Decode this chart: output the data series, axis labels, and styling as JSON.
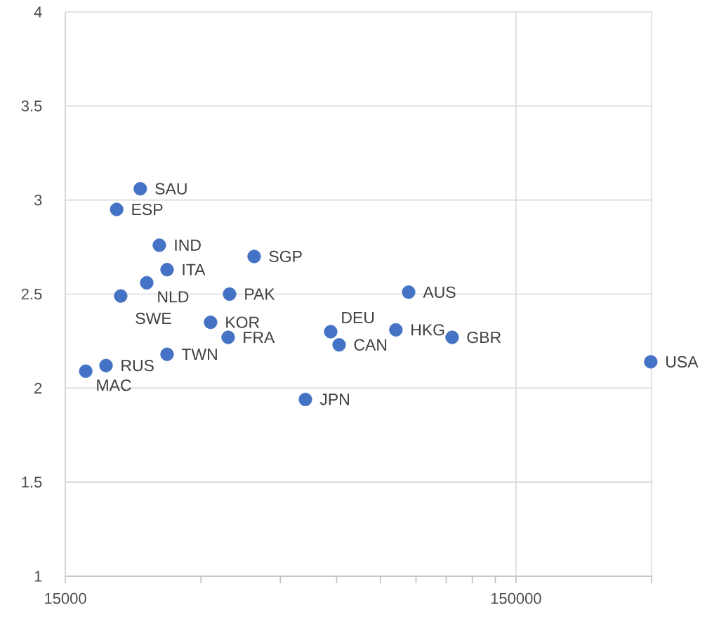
{
  "chart_data": {
    "type": "scatter",
    "color": "#4472c4",
    "log": "x",
    "grid": true,
    "x": [
      22000,
      19500,
      24250,
      25230,
      22740,
      19910,
      39370,
      34720,
      31510,
      34470,
      25230,
      18470,
      16650,
      51150,
      58210,
      60770,
      81220,
      86680,
      108250,
      298700
    ],
    "values": [
      3.06,
      2.95,
      2.76,
      2.63,
      2.56,
      2.49,
      2.7,
      2.5,
      2.35,
      2.27,
      2.18,
      2.12,
      2.09,
      1.94,
      2.3,
      2.23,
      2.31,
      2.51,
      2.27,
      2.14
    ],
    "xlim": [
      15000,
      300000
    ],
    "ylim": [
      1,
      4
    ],
    "xticks": [
      15000,
      {
        "value": 30000,
        "label": null
      },
      {
        "value": 45000,
        "label": null
      },
      {
        "value": 60000,
        "label": null
      },
      {
        "value": 75000,
        "label": null
      },
      {
        "value": 90000,
        "label": null
      },
      {
        "value": 105000,
        "label": null
      },
      {
        "value": 120000,
        "label": null
      },
      {
        "value": 135000,
        "label": null
      },
      150000,
      {
        "value": 300000,
        "label": null
      }
    ],
    "yticks": [
      1,
      1.5,
      2,
      2.5,
      3,
      3.5,
      4
    ],
    "annotations": [
      {
        "text": "SAU",
        "x": 22000,
        "y": 3.06
      },
      {
        "text": "ESP",
        "x": 19500,
        "y": 2.95
      },
      {
        "text": "IND",
        "x": 24250,
        "y": 2.76
      },
      {
        "text": "ITA",
        "x": 25230,
        "y": 2.63
      },
      {
        "text": "NLD",
        "x": 22740,
        "y": 2.56
      },
      {
        "text": "SWE",
        "x": 19910,
        "y": 2.49
      },
      {
        "text": "SGP",
        "x": 39370,
        "y": 2.7
      },
      {
        "text": "PAK",
        "x": 34720,
        "y": 2.5
      },
      {
        "text": "KOR",
        "x": 31510,
        "y": 2.35
      },
      {
        "text": "FRA",
        "x": 34470,
        "y": 2.27
      },
      {
        "text": "TWN",
        "x": 25230,
        "y": 2.18
      },
      {
        "text": "RUS",
        "x": 18470,
        "y": 2.12
      },
      {
        "text": "MAC",
        "x": 16650,
        "y": 2.09
      },
      {
        "text": "JPN",
        "x": 51150,
        "y": 1.94
      },
      {
        "text": "DEU",
        "x": 58210,
        "y": 2.3
      },
      {
        "text": "CAN",
        "x": 60770,
        "y": 2.23
      },
      {
        "text": "HKG",
        "x": 81220,
        "y": 2.31
      },
      {
        "text": "AUS",
        "x": 86680,
        "y": 2.51
      },
      {
        "text": "GBR",
        "x": 108250,
        "y": 2.27
      },
      {
        "text": "USA",
        "x": 298700,
        "y": 2.14
      }
    ]
  }
}
